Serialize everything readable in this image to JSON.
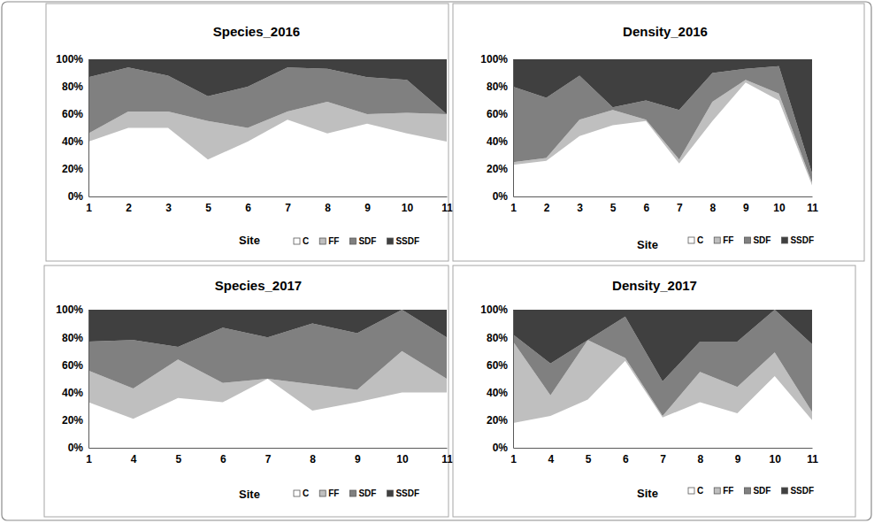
{
  "chart_data": [
    {
      "type": "area",
      "title": "Species_2016",
      "x_label": "Site",
      "stacked": true,
      "legend": "bottom right",
      "categories": [
        "1",
        "2",
        "3",
        "5",
        "6",
        "7",
        "8",
        "9",
        "10",
        "11"
      ],
      "series": [
        {
          "name": "C",
          "color": "#ffffff",
          "values": [
            40,
            50,
            50,
            27,
            40,
            56,
            46,
            53,
            46,
            40
          ]
        },
        {
          "name": "FF",
          "color": "#bfbfbf",
          "values": [
            6,
            12,
            12,
            28,
            10,
            6,
            23,
            7,
            15,
            20
          ]
        },
        {
          "name": "SDF",
          "color": "#808080",
          "values": [
            41,
            32,
            26,
            18,
            30,
            32,
            24,
            27,
            24,
            0
          ]
        },
        {
          "name": "SSDF",
          "color": "#404040",
          "values": [
            13,
            6,
            12,
            27,
            20,
            6,
            7,
            13,
            15,
            40
          ]
        }
      ],
      "ylim": [
        0,
        100
      ],
      "yticks": [
        {
          "value": 0,
          "label": "0%"
        },
        {
          "value": 20,
          "label": "20%"
        },
        {
          "value": 40,
          "label": "40%"
        },
        {
          "value": 60,
          "label": "60%"
        },
        {
          "value": 80,
          "label": "80%"
        },
        {
          "value": 100,
          "label": "100%"
        }
      ]
    },
    {
      "type": "area",
      "title": "Density_2016",
      "x_label": "Site",
      "stacked": true,
      "legend": "bottom right",
      "categories": [
        "1",
        "2",
        "3",
        "5",
        "6",
        "7",
        "8",
        "9",
        "10",
        "11"
      ],
      "series": [
        {
          "name": "C",
          "color": "#ffffff",
          "values": [
            23,
            26,
            44,
            52,
            55,
            24,
            55,
            83,
            70,
            8
          ]
        },
        {
          "name": "FF",
          "color": "#bfbfbf",
          "values": [
            2,
            2,
            12,
            11,
            1,
            3,
            14,
            2,
            5,
            2
          ]
        },
        {
          "name": "SDF",
          "color": "#808080",
          "values": [
            55,
            44,
            32,
            2,
            14,
            36,
            21,
            8,
            20,
            7
          ]
        },
        {
          "name": "SSDF",
          "color": "#404040",
          "values": [
            20,
            28,
            12,
            35,
            30,
            37,
            10,
            7,
            5,
            83
          ]
        }
      ],
      "ylim": [
        0,
        100
      ],
      "yticks": [
        {
          "value": 0,
          "label": "0%"
        },
        {
          "value": 20,
          "label": "20%"
        },
        {
          "value": 40,
          "label": "40%"
        },
        {
          "value": 60,
          "label": "60%"
        },
        {
          "value": 80,
          "label": "80%"
        },
        {
          "value": 100,
          "label": "100%"
        }
      ]
    },
    {
      "type": "area",
      "title": "Species_2017",
      "x_label": "Site",
      "stacked": true,
      "legend": "bottom right",
      "categories": [
        "1",
        "4",
        "5",
        "6",
        "7",
        "8",
        "9",
        "10",
        "11"
      ],
      "series": [
        {
          "name": "C",
          "color": "#ffffff",
          "values": [
            33,
            21,
            36,
            33,
            50,
            27,
            33,
            40,
            40
          ]
        },
        {
          "name": "FF",
          "color": "#bfbfbf",
          "values": [
            23,
            22,
            28,
            14,
            0,
            19,
            9,
            30,
            10
          ]
        },
        {
          "name": "SDF",
          "color": "#808080",
          "values": [
            21,
            35,
            9,
            40,
            30,
            44,
            41,
            30,
            30
          ]
        },
        {
          "name": "SSDF",
          "color": "#404040",
          "values": [
            23,
            22,
            27,
            13,
            20,
            10,
            17,
            0,
            20
          ]
        }
      ],
      "ylim": [
        0,
        100
      ],
      "yticks": [
        {
          "value": 0,
          "label": "0%"
        },
        {
          "value": 20,
          "label": "20%"
        },
        {
          "value": 40,
          "label": "40%"
        },
        {
          "value": 60,
          "label": "60%"
        },
        {
          "value": 80,
          "label": "80%"
        },
        {
          "value": 100,
          "label": "100%"
        }
      ]
    },
    {
      "type": "area",
      "title": "Density_2017",
      "x_label": "Site",
      "stacked": true,
      "legend": "bottom right",
      "categories": [
        "1",
        "4",
        "5",
        "6",
        "7",
        "8",
        "9",
        "10",
        "11"
      ],
      "series": [
        {
          "name": "C",
          "color": "#ffffff",
          "values": [
            18,
            23,
            35,
            63,
            22,
            33,
            25,
            52,
            20
          ]
        },
        {
          "name": "FF",
          "color": "#bfbfbf",
          "values": [
            59,
            15,
            43,
            2,
            1,
            22,
            19,
            17,
            6
          ]
        },
        {
          "name": "SDF",
          "color": "#808080",
          "values": [
            5,
            23,
            0,
            30,
            25,
            22,
            33,
            31,
            49
          ]
        },
        {
          "name": "SSDF",
          "color": "#404040",
          "values": [
            18,
            39,
            22,
            5,
            52,
            23,
            23,
            0,
            25
          ]
        }
      ],
      "ylim": [
        0,
        100
      ],
      "yticks": [
        {
          "value": 0,
          "label": "0%"
        },
        {
          "value": 20,
          "label": "20%"
        },
        {
          "value": 40,
          "label": "40%"
        },
        {
          "value": 60,
          "label": "60%"
        },
        {
          "value": 80,
          "label": "80%"
        },
        {
          "value": 100,
          "label": "100%"
        }
      ]
    }
  ]
}
